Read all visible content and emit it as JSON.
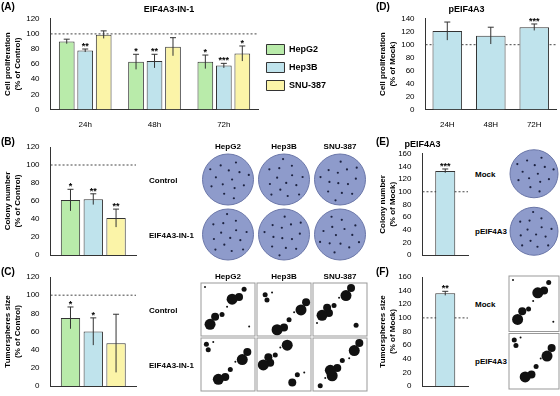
{
  "chart_data": [
    {
      "type": "bar",
      "panel_label": "(A)",
      "title": "EIF4A3-IN-1",
      "y_label": [
        "Cell proliferation",
        "(% of Control)"
      ],
      "categories": [
        "24h",
        "48h",
        "72h"
      ],
      "series": [
        {
          "name": "HepG2",
          "color": "#b9ebaa",
          "values": [
            90,
            63,
            63
          ],
          "errors": [
            3,
            10,
            9
          ],
          "significance": [
            null,
            "*",
            "*"
          ]
        },
        {
          "name": "Hep3B",
          "color": "#bfe3ec",
          "values": [
            78,
            64,
            58
          ],
          "errors": [
            2,
            9,
            3
          ],
          "significance": [
            "**",
            "**",
            "***"
          ]
        },
        {
          "name": "SNU-387",
          "color": "#fbf4a8",
          "values": [
            99,
            83,
            74
          ],
          "errors": [
            5,
            12,
            10
          ],
          "significance": [
            null,
            null,
            "*"
          ]
        }
      ],
      "reference_line": 100,
      "ylim": [
        0,
        120
      ],
      "yticks": [
        0,
        20,
        40,
        60,
        80,
        100,
        120
      ],
      "grid": false,
      "legend": "right"
    },
    {
      "type": "bar",
      "panel_label": "(B)",
      "y_label": [
        "Colony number",
        "(% of Control)"
      ],
      "categories": [
        null
      ],
      "series": [
        {
          "name": "HepG2",
          "color": "#b9ebaa",
          "values": [
            61
          ],
          "errors": [
            12
          ],
          "significance": [
            "*"
          ]
        },
        {
          "name": "Hep3B",
          "color": "#bfe3ec",
          "values": [
            62
          ],
          "errors": [
            6
          ],
          "significance": [
            "**"
          ]
        },
        {
          "name": "SNU-387",
          "color": "#fbf4a8",
          "values": [
            41
          ],
          "errors": [
            10
          ],
          "significance": [
            "**"
          ]
        }
      ],
      "reference_line": 100,
      "ylim": [
        0,
        120
      ],
      "yticks": [
        0,
        20,
        40,
        60,
        80,
        100,
        120
      ],
      "grid": false,
      "tick_labels": "y"
    },
    {
      "type": "bar",
      "panel_label": "(C)",
      "y_label": [
        "Tumorspheres size",
        "(% of Control)"
      ],
      "categories": [
        null
      ],
      "series": [
        {
          "name": "HepG2",
          "color": "#b9ebaa",
          "values": [
            75
          ],
          "errors": [
            12
          ],
          "significance": [
            "*"
          ]
        },
        {
          "name": "Hep3B",
          "color": "#bfe3ec",
          "values": [
            60
          ],
          "errors": [
            15
          ],
          "significance": [
            "*"
          ]
        },
        {
          "name": "SNU-387",
          "color": "#fbf4a8",
          "values": [
            47
          ],
          "errors": [
            32
          ],
          "significance": [
            null
          ]
        }
      ],
      "reference_line": 100,
      "ylim": [
        0,
        120
      ],
      "yticks": [
        0,
        20,
        40,
        60,
        80,
        100,
        120
      ],
      "grid": false,
      "tick_labels": "y"
    },
    {
      "type": "bar",
      "panel_label": "(D)",
      "title": "pEIF4A3",
      "y_label": [
        "Cell proliferation",
        "(% of Mock)"
      ],
      "categories": [
        "24H",
        "48H",
        "72H"
      ],
      "values": [
        121,
        114,
        127
      ],
      "errors": [
        14,
        13,
        5
      ],
      "significance": [
        null,
        null,
        "***"
      ],
      "color": "#bfe3ec",
      "reference_line": 100,
      "ylim": [
        0,
        140
      ],
      "yticks": [
        0,
        20,
        40,
        60,
        80,
        100,
        120,
        140
      ],
      "grid": false
    },
    {
      "type": "bar",
      "panel_label": "(E)",
      "title": "pEIF4A3",
      "y_label": [
        "Colony number",
        "(% of Mock)"
      ],
      "categories": [
        null
      ],
      "values": [
        133
      ],
      "errors": [
        3
      ],
      "significance": [
        "***"
      ],
      "color": "#bfe3ec",
      "reference_line": 100,
      "ylim": [
        0,
        160
      ],
      "yticks": [
        0,
        20,
        40,
        60,
        80,
        100,
        120,
        140,
        160
      ],
      "grid": false,
      "tick_labels": "y"
    },
    {
      "type": "bar",
      "panel_label": "(F)",
      "y_label": [
        "Tumorspheres size",
        "(% of Mock)"
      ],
      "categories": [
        null
      ],
      "values": [
        136
      ],
      "errors": [
        3
      ],
      "significance": [
        "**"
      ],
      "color": "#bfe3ec",
      "reference_line": 100,
      "ylim": [
        0,
        160
      ],
      "yticks": [
        0,
        20,
        40,
        60,
        80,
        100,
        120,
        140,
        160
      ],
      "grid": false,
      "tick_labels": "y"
    }
  ],
  "image_panels": [
    {
      "column_labels": [
        "HepG2",
        "Hep3B",
        "SNU-387"
      ],
      "row_labels": [
        "Control",
        "EIF4A3-IN-1"
      ]
    },
    {
      "column_labels": [
        "HepG2",
        "Hep3B",
        "SNU-387"
      ],
      "row_labels": [
        "Control",
        "EIF4A3-IN-1"
      ]
    },
    {
      "column_labels": [],
      "row_labels": [
        "Mock",
        "pEIF4A3"
      ]
    },
    {
      "column_labels": [],
      "row_labels": [
        "Mock",
        "pEIF4A3"
      ]
    }
  ]
}
